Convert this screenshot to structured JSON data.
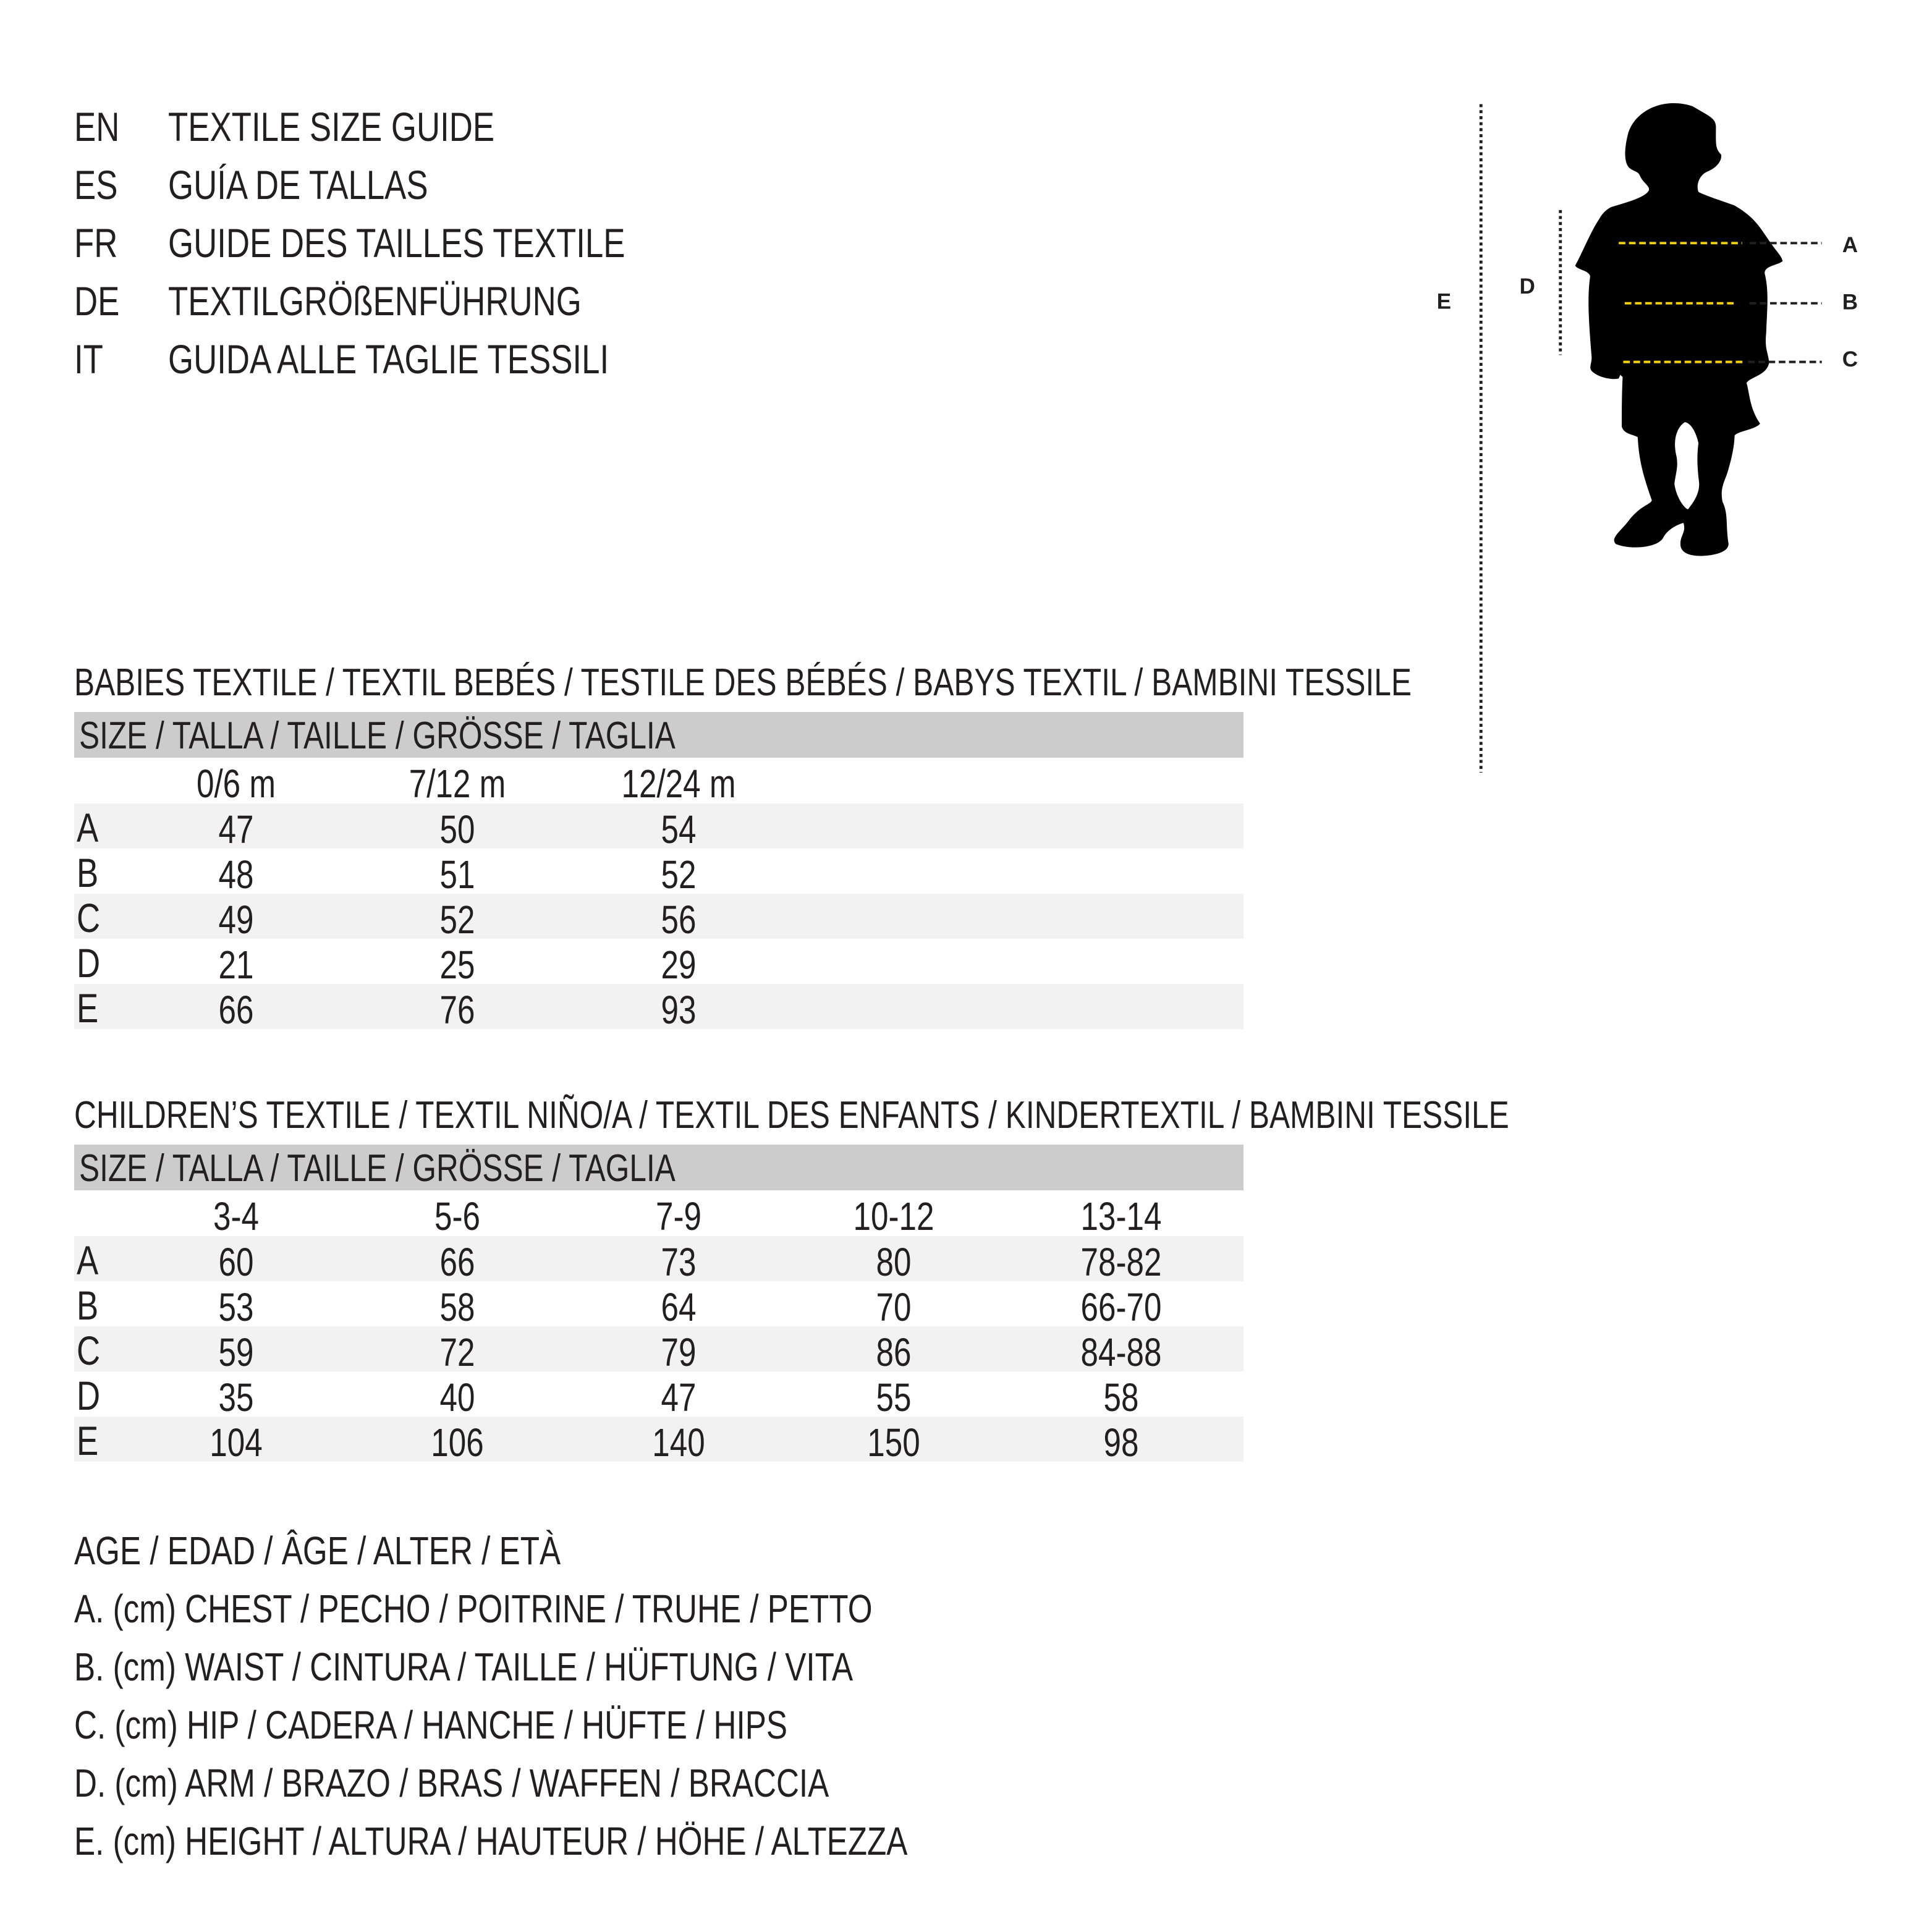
{
  "titles": [
    {
      "code": "EN",
      "text": "TEXTILE SIZE GUIDE"
    },
    {
      "code": "ES",
      "text": "GUÍA DE TALLAS"
    },
    {
      "code": "FR",
      "text": "GUIDE DES TAILLES TEXTILE"
    },
    {
      "code": "DE",
      "text": "TEXTILGRÖßENFÜHRUNG"
    },
    {
      "code": "IT",
      "text": "GUIDA ALLE TAGLIE TESSILI"
    }
  ],
  "babies": {
    "title": "BABIES TEXTILE / TEXTIL BEBÉS / TESTILE DES BÉBÉS / BABYS TEXTIL / BAMBINI TESSILE",
    "size_header": "SIZE / TALLA / TAILLE / GRÖSSE / TAGLIA",
    "columns": [
      "0/6 m",
      "7/12 m",
      "12/24 m"
    ],
    "rows": [
      {
        "label": "A",
        "values": [
          "47",
          "50",
          "54"
        ]
      },
      {
        "label": "B",
        "values": [
          "48",
          "51",
          "52"
        ]
      },
      {
        "label": "C",
        "values": [
          "49",
          "52",
          "56"
        ]
      },
      {
        "label": "D",
        "values": [
          "21",
          "25",
          "29"
        ]
      },
      {
        "label": "E",
        "values": [
          "66",
          "76",
          "93"
        ]
      }
    ]
  },
  "children": {
    "title": "CHILDREN’S TEXTILE / TEXTIL NIÑO/A / TEXTIL DES ENFANTS / KINDERTEXTIL / BAMBINI TESSILE",
    "size_header": "SIZE / TALLA / TAILLE / GRÖSSE / TAGLIA",
    "columns": [
      "3-4",
      "5-6",
      "7-9",
      "10-12",
      "13-14"
    ],
    "rows": [
      {
        "label": "A",
        "values": [
          "60",
          "66",
          "73",
          "80",
          "78-82"
        ]
      },
      {
        "label": "B",
        "values": [
          "53",
          "58",
          "64",
          "70",
          "66-70"
        ]
      },
      {
        "label": "C",
        "values": [
          "59",
          "72",
          "79",
          "86",
          "84-88"
        ]
      },
      {
        "label": "D",
        "values": [
          "35",
          "40",
          "47",
          "55",
          "58"
        ]
      },
      {
        "label": "E",
        "values": [
          "104",
          "106",
          "140",
          "150",
          "98"
        ]
      }
    ]
  },
  "legend": [
    "AGE / EDAD / ÂGE / ALTER / ETÀ",
    "A. (cm) CHEST / PECHO / POITRINE / TRUHE / PETTO",
    "B. (cm) WAIST / CINTURA / TAILLE / HÜFTUNG / VITA",
    "C. (cm) HIP / CADERA / HANCHE / HÜFTE / HIPS",
    "D. (cm) ARM / BRAZO / BRAS / WAFFEN / BRACCIA",
    "E. (cm) HEIGHT / ALTURA / HAUTEUR / HÖHE / ALTEZZA"
  ],
  "figure": {
    "labels": {
      "A": "A",
      "B": "B",
      "C": "C",
      "D": "D",
      "E": "E"
    },
    "icon": "child-silhouette-icon",
    "colors": {
      "measure_line": "#f5d200",
      "guide_line": "#231f20",
      "silhouette": "#000000"
    }
  }
}
